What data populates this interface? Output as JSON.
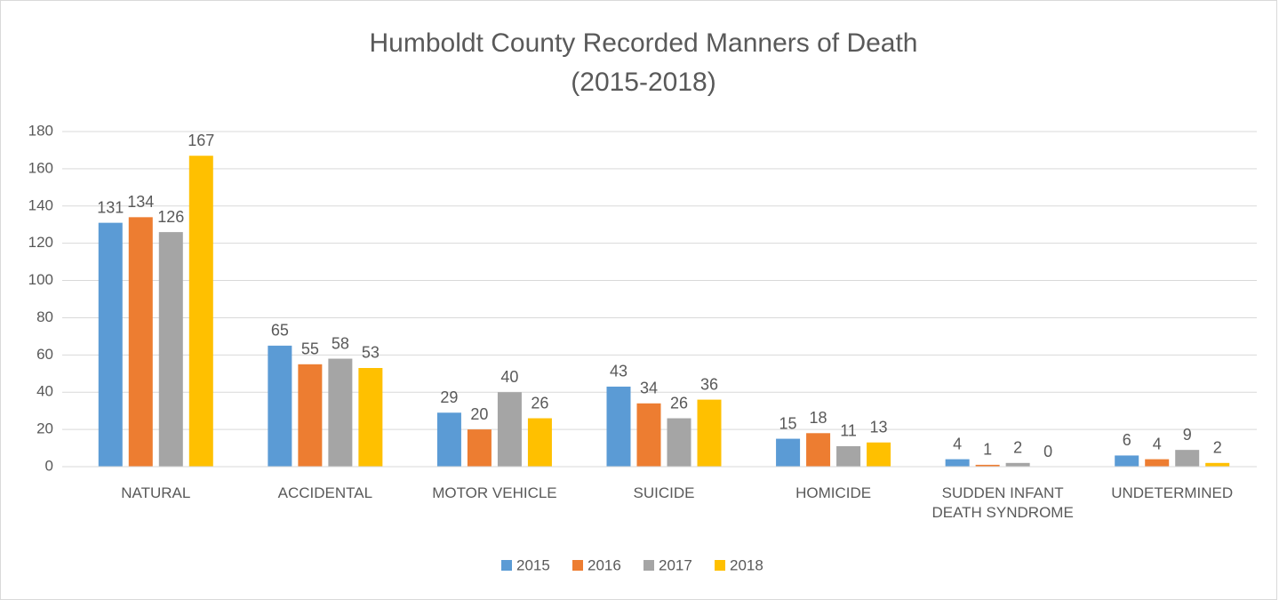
{
  "chart_data": {
    "type": "bar",
    "title": [
      "Humboldt County Recorded Manners of Death",
      "(2015-2018)"
    ],
    "categories": [
      "NATURAL",
      "ACCIDENTAL",
      "MOTOR VEHICLE",
      "SUICIDE",
      "HOMICIDE",
      "SUDDEN INFANT DEATH SYNDROME",
      "UNDETERMINED"
    ],
    "series": [
      {
        "name": "2015",
        "color": "#5b9bd5",
        "values": [
          131,
          65,
          29,
          43,
          15,
          4,
          6
        ]
      },
      {
        "name": "2016",
        "color": "#ed7d31",
        "values": [
          134,
          55,
          20,
          34,
          18,
          1,
          4
        ]
      },
      {
        "name": "2017",
        "color": "#a5a5a5",
        "values": [
          126,
          58,
          40,
          26,
          11,
          2,
          9
        ]
      },
      {
        "name": "2018",
        "color": "#ffc000",
        "values": [
          167,
          53,
          26,
          36,
          13,
          0,
          2
        ]
      }
    ],
    "ylim": [
      0,
      180
    ],
    "yticks": [
      0,
      20,
      40,
      60,
      80,
      100,
      120,
      140,
      160,
      180
    ],
    "grid": true,
    "legend": "bottom"
  }
}
